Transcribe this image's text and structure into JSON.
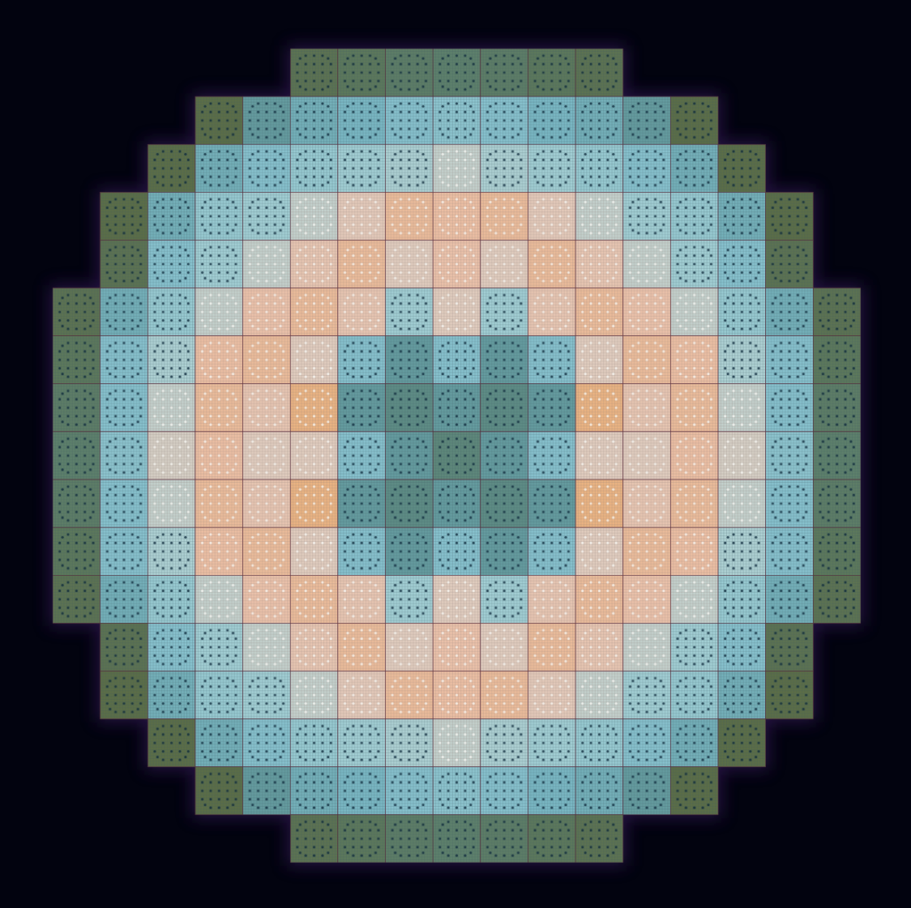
{
  "chart_data": {
    "type": "heatmap",
    "tick_labels": false,
    "values": [
      [
        null,
        null,
        null,
        null,
        null,
        0.3,
        0.32,
        0.34,
        0.35,
        0.34,
        0.32,
        0.3,
        null,
        null,
        null,
        null,
        null
      ],
      [
        null,
        null,
        null,
        0.28,
        0.45,
        0.5,
        0.52,
        0.55,
        0.56,
        0.55,
        0.52,
        0.5,
        0.45,
        0.28,
        null,
        null,
        null
      ],
      [
        null,
        null,
        0.28,
        0.5,
        0.55,
        0.58,
        0.6,
        0.62,
        0.65,
        0.62,
        0.6,
        0.58,
        0.55,
        0.5,
        0.28,
        null,
        null
      ],
      [
        null,
        0.28,
        0.5,
        0.58,
        0.6,
        0.65,
        0.72,
        0.82,
        0.8,
        0.82,
        0.72,
        0.65,
        0.6,
        0.58,
        0.5,
        0.28,
        null
      ],
      [
        null,
        0.3,
        0.55,
        0.6,
        0.65,
        0.75,
        0.82,
        0.7,
        0.78,
        0.7,
        0.82,
        0.75,
        0.65,
        0.6,
        0.55,
        0.3,
        null
      ],
      [
        0.3,
        0.5,
        0.58,
        0.65,
        0.78,
        0.82,
        0.75,
        0.6,
        0.7,
        0.6,
        0.75,
        0.82,
        0.78,
        0.65,
        0.58,
        0.5,
        0.3
      ],
      [
        0.32,
        0.55,
        0.62,
        0.8,
        0.82,
        0.7,
        0.55,
        0.45,
        0.55,
        0.45,
        0.55,
        0.7,
        0.82,
        0.8,
        0.62,
        0.55,
        0.32
      ],
      [
        0.34,
        0.55,
        0.65,
        0.82,
        0.75,
        0.88,
        0.45,
        0.4,
        0.45,
        0.4,
        0.45,
        0.88,
        0.75,
        0.82,
        0.65,
        0.55,
        0.34
      ],
      [
        0.35,
        0.56,
        0.68,
        0.8,
        0.7,
        0.7,
        0.55,
        0.45,
        0.38,
        0.45,
        0.55,
        0.7,
        0.7,
        0.8,
        0.68,
        0.56,
        0.35
      ],
      [
        0.34,
        0.55,
        0.65,
        0.82,
        0.75,
        0.88,
        0.45,
        0.4,
        0.45,
        0.4,
        0.45,
        0.88,
        0.75,
        0.82,
        0.65,
        0.55,
        0.34
      ],
      [
        0.32,
        0.55,
        0.62,
        0.8,
        0.82,
        0.7,
        0.55,
        0.45,
        0.55,
        0.45,
        0.55,
        0.7,
        0.82,
        0.8,
        0.62,
        0.55,
        0.32
      ],
      [
        0.3,
        0.5,
        0.58,
        0.65,
        0.78,
        0.82,
        0.75,
        0.6,
        0.7,
        0.6,
        0.75,
        0.82,
        0.78,
        0.65,
        0.58,
        0.5,
        0.3
      ],
      [
        null,
        0.3,
        0.55,
        0.6,
        0.65,
        0.75,
        0.82,
        0.7,
        0.78,
        0.7,
        0.82,
        0.75,
        0.65,
        0.6,
        0.55,
        0.3,
        null
      ],
      [
        null,
        0.28,
        0.5,
        0.58,
        0.6,
        0.65,
        0.72,
        0.82,
        0.8,
        0.82,
        0.72,
        0.65,
        0.6,
        0.58,
        0.5,
        0.28,
        null
      ],
      [
        null,
        null,
        0.28,
        0.5,
        0.55,
        0.58,
        0.6,
        0.62,
        0.65,
        0.62,
        0.6,
        0.58,
        0.55,
        0.5,
        0.28,
        null,
        null
      ],
      [
        null,
        null,
        null,
        0.28,
        0.45,
        0.5,
        0.52,
        0.55,
        0.56,
        0.55,
        0.52,
        0.5,
        0.45,
        0.28,
        null,
        null,
        null
      ],
      [
        null,
        null,
        null,
        null,
        null,
        0.3,
        0.32,
        0.34,
        0.35,
        0.34,
        0.32,
        0.3,
        null,
        null,
        null,
        null,
        null
      ]
    ]
  }
}
